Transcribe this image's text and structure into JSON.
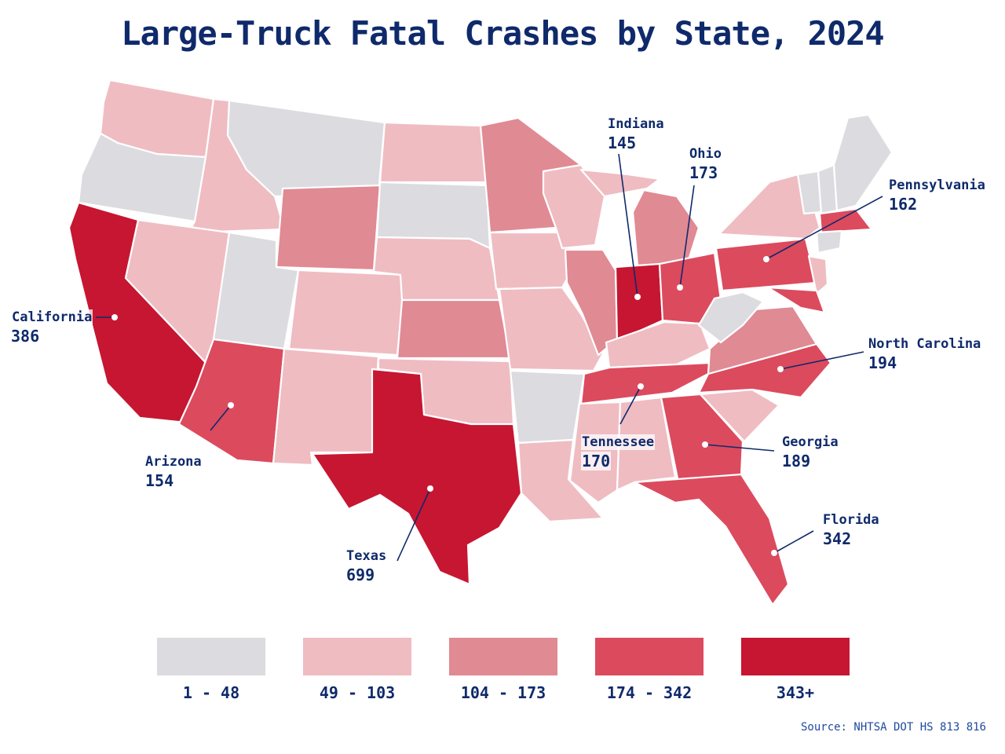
{
  "title": "Large-Truck Fatal Crashes by State, 2024",
  "source": "Source: NHTSA DOT HS 813 816",
  "colors": {
    "bin1": "#dcdce0",
    "bin2": "#efbcc2",
    "bin3": "#e08a94",
    "bin4": "#dc4a5e",
    "bin5": "#c61632",
    "text": "#0f2a6b"
  },
  "legend": [
    {
      "label": "1 - 48",
      "color": "#dcdce0"
    },
    {
      "label": "49 - 103",
      "color": "#efbcc2"
    },
    {
      "label": "104 - 173",
      "color": "#e08a94"
    },
    {
      "label": "174 - 342",
      "color": "#dc4a5e"
    },
    {
      "label": "343+",
      "color": "#c61632"
    }
  ],
  "callouts": [
    {
      "state": "California",
      "value": "386"
    },
    {
      "state": "Arizona",
      "value": "154"
    },
    {
      "state": "Texas",
      "value": "699"
    },
    {
      "state": "Tennessee",
      "value": "170"
    },
    {
      "state": "Indiana",
      "value": "145"
    },
    {
      "state": "Ohio",
      "value": "173"
    },
    {
      "state": "Pennsylvania",
      "value": "162"
    },
    {
      "state": "North Carolina",
      "value": "194"
    },
    {
      "state": "Georgia",
      "value": "189"
    },
    {
      "state": "Florida",
      "value": "342"
    }
  ]
}
